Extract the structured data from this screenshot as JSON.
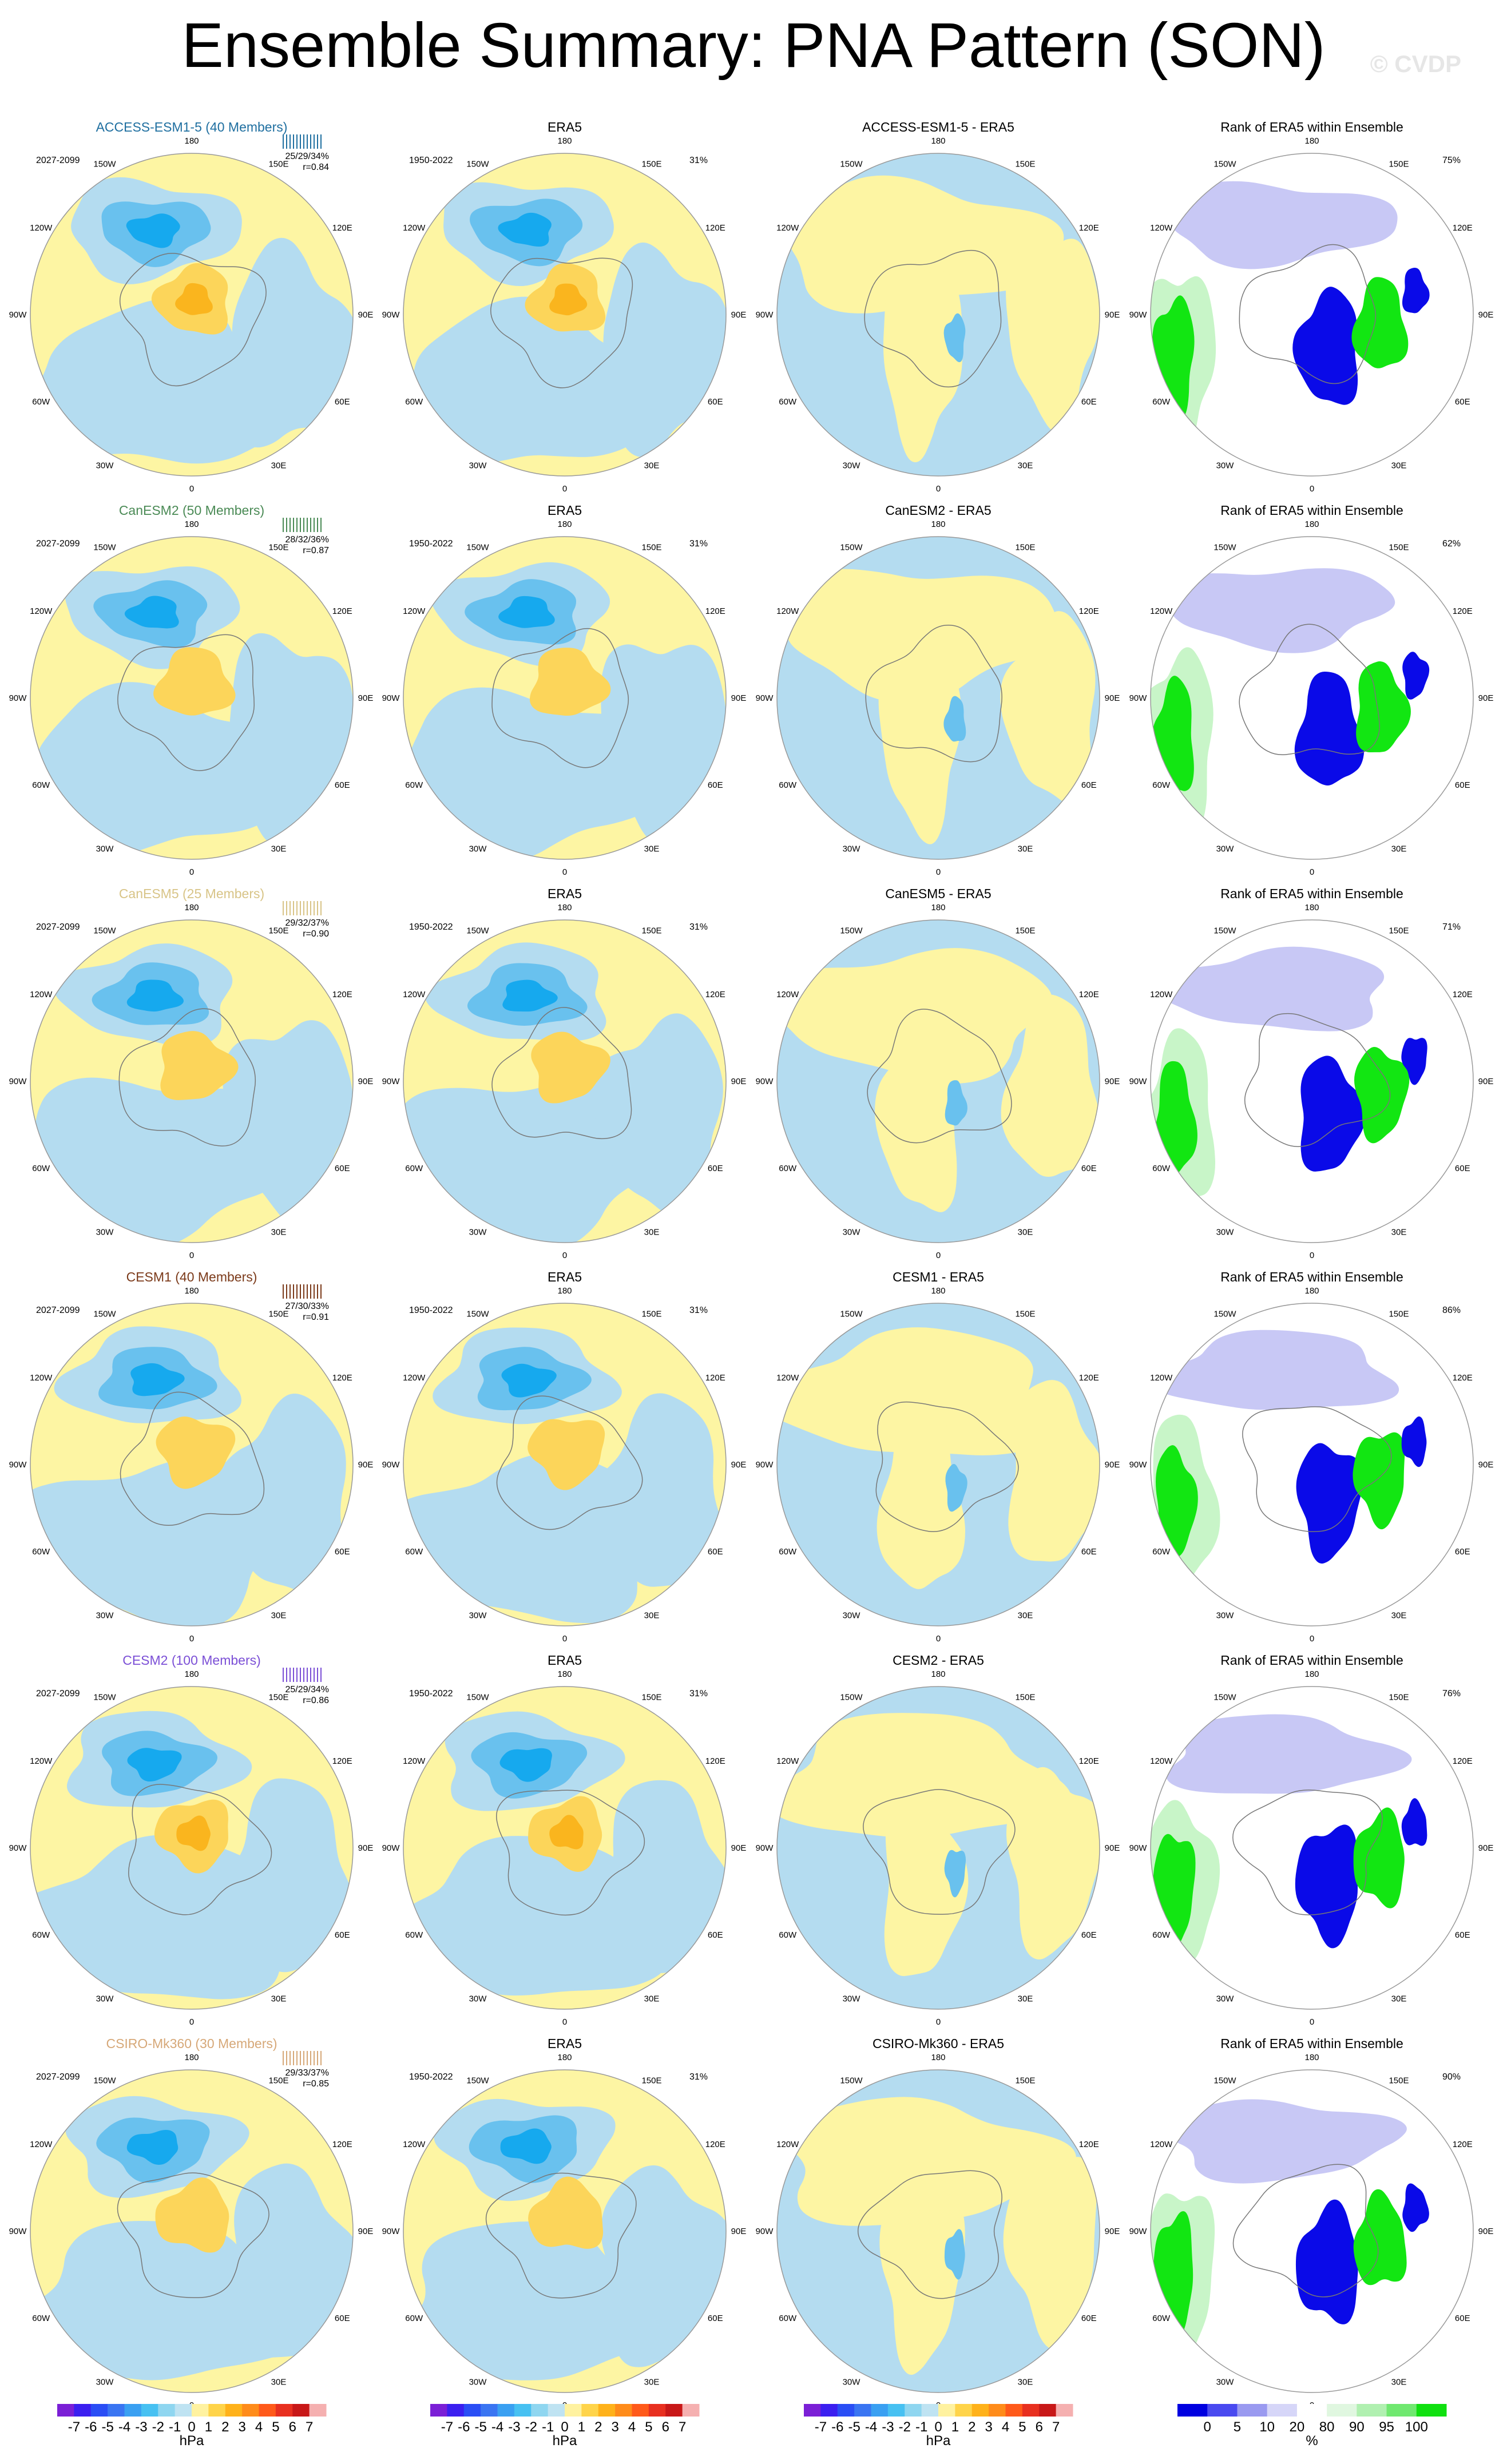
{
  "title": "Ensemble Summary: PNA Pattern (SON)",
  "watermark": "© CVDP",
  "lon_labels": [
    "180",
    "150E",
    "120E",
    "90E",
    "60E",
    "30E",
    "0",
    "30W",
    "60W",
    "90W",
    "120W",
    "150W"
  ],
  "rows": [
    {
      "model": "ACCESS-ESM1-5 (40 Members)",
      "color": "#1f6fa0",
      "years": "2027-2099",
      "stats": "25/29/34%",
      "r": "r=0.84",
      "era_pct": "31%",
      "diff_title": "ACCESS-ESM1-5 - ERA5",
      "rank_pct": "75%"
    },
    {
      "model": "CanESM2 (50 Members)",
      "color": "#4a8a55",
      "years": "2027-2099",
      "stats": "28/32/36%",
      "r": "r=0.87",
      "era_pct": "31%",
      "diff_title": "CanESM2 - ERA5",
      "rank_pct": "62%"
    },
    {
      "model": "CanESM5 (25 Members)",
      "color": "#d8c487",
      "years": "2027-2099",
      "stats": "29/32/37%",
      "r": "r=0.90",
      "era_pct": "31%",
      "diff_title": "CanESM5 - ERA5",
      "rank_pct": "71%"
    },
    {
      "model": "CESM1 (40 Members)",
      "color": "#7b3a1a",
      "years": "2027-2099",
      "stats": "27/30/33%",
      "r": "r=0.91",
      "era_pct": "31%",
      "diff_title": "CESM1 - ERA5",
      "rank_pct": "86%"
    },
    {
      "model": "CESM2 (100 Members)",
      "color": "#7b4fd6",
      "years": "2027-2099",
      "stats": "25/29/34%",
      "r": "r=0.86",
      "era_pct": "31%",
      "diff_title": "CESM2 - ERA5",
      "rank_pct": "76%"
    },
    {
      "model": "CSIRO-Mk360 (30 Members)",
      "color": "#d6a878",
      "years": "2027-2099",
      "stats": "29/33/37%",
      "r": "r=0.85",
      "era_pct": "31%",
      "diff_title": "CSIRO-Mk360 - ERA5",
      "rank_pct": "90%"
    }
  ],
  "era_title": "ERA5",
  "era_years": "1950-2022",
  "rank_title": "Rank of ERA5 within Ensemble",
  "colorbars": {
    "hpa_labels": [
      "-7",
      "-6",
      "-5",
      "-4",
      "-3",
      "-2",
      "-1",
      "0",
      "1",
      "2",
      "3",
      "4",
      "5",
      "6",
      "7"
    ],
    "hpa_unit": "hPa",
    "hpa_colors": [
      "#7b1fd6",
      "#3b1ff0",
      "#2a4ef5",
      "#3a75f2",
      "#3aa0f2",
      "#47c1f2",
      "#8fd6f0",
      "#bfe3f2",
      "#fff2a0",
      "#ffd44a",
      "#ffb21a",
      "#ff8c1a",
      "#ff5a1a",
      "#e83020",
      "#c81818",
      "#f5b0b0"
    ],
    "rank_labels": [
      "0",
      "5",
      "10",
      "20",
      "80",
      "90",
      "95",
      "100"
    ],
    "rank_unit": "%",
    "rank_colors": [
      "#0000e0",
      "#4a4af0",
      "#9a9af0",
      "#d6d6f8",
      "#ffffff",
      "#e0f7e0",
      "#b0f0b0",
      "#70e870",
      "#10e010"
    ]
  },
  "palette": {
    "yellow": "#fdf5a3",
    "blue": "#b4dcf0",
    "blue_mid": "#69c1ee",
    "blue_dark": "#16a9ee",
    "orange_light": "#fcd55a",
    "orange": "#fab51e",
    "rank_blue": "#0a0ae8",
    "rank_lblue": "#c8c8f5",
    "rank_green": "#12e612",
    "rank_lgreen": "#c8f5c8"
  }
}
